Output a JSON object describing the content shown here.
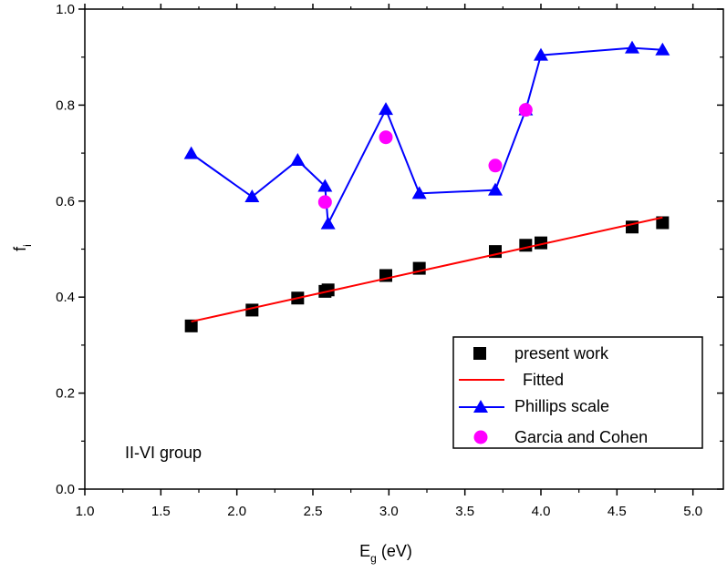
{
  "chart_data": {
    "type": "line",
    "xlabel": "E",
    "xlabel_sub": "g",
    "xlabel_unit": " (eV)",
    "ylabel": "f",
    "ylabel_sub": "i",
    "xlim": [
      1.0,
      5.2
    ],
    "ylim": [
      0.0,
      1.0
    ],
    "xticks": [
      "1.0",
      "1.5",
      "2.0",
      "2.5",
      "3.0",
      "3.5",
      "4.0",
      "4.5",
      "5.0"
    ],
    "yticks": [
      "0.0",
      "0.2",
      "0.4",
      "0.6",
      "0.8",
      "1.0"
    ],
    "annotation": "II-VI group",
    "legend_position": "bottom-right",
    "series": [
      {
        "name": "present work",
        "style": "markers",
        "marker": "square",
        "color": "#000000",
        "x": [
          1.7,
          2.1,
          2.4,
          2.58,
          2.6,
          2.98,
          3.2,
          3.7,
          3.9,
          4.0,
          4.6,
          4.8
        ],
        "y": [
          0.34,
          0.373,
          0.398,
          0.412,
          0.415,
          0.445,
          0.46,
          0.495,
          0.508,
          0.513,
          0.546,
          0.555
        ]
      },
      {
        "name": "Fitted",
        "style": "line",
        "color": "#ff0000",
        "x": [
          1.7,
          4.8
        ],
        "y": [
          0.349,
          0.566
        ]
      },
      {
        "name": "Phillips scale",
        "style": "line+markers",
        "marker": "triangle",
        "color": "#0000ff",
        "x": [
          1.7,
          2.1,
          2.4,
          2.58,
          2.6,
          2.98,
          3.2,
          3.7,
          3.9,
          4.0,
          4.6,
          4.8
        ],
        "y": [
          0.699,
          0.609,
          0.685,
          0.631,
          0.553,
          0.791,
          0.616,
          0.623,
          0.79,
          0.904,
          0.919,
          0.915
        ]
      },
      {
        "name": "Garcia and Cohen",
        "style": "markers",
        "marker": "circle",
        "color": "#ff00ff",
        "x": [
          2.58,
          2.98,
          3.7,
          3.9
        ],
        "y": [
          0.598,
          0.733,
          0.674,
          0.79
        ]
      }
    ]
  }
}
